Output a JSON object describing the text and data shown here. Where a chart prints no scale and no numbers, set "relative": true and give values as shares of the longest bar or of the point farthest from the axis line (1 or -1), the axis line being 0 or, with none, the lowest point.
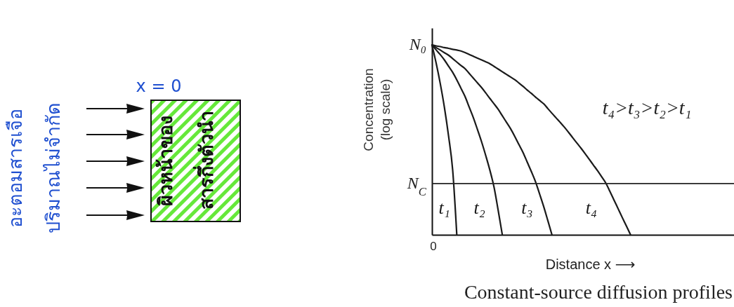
{
  "chart_data": {
    "type": "line",
    "relative": true,
    "xlabel": "Distance x ⟶",
    "ylabel": "Concentration\n(log scale)",
    "line_style": "solid",
    "categories": [
      null,
      null,
      null,
      null,
      null,
      null,
      null,
      null,
      null,
      null,
      null,
      null,
      null,
      null,
      null,
      null,
      null,
      null,
      null,
      null,
      null,
      null,
      null,
      null,
      null,
      null,
      null,
      null,
      null,
      null,
      null,
      null,
      null,
      null,
      null,
      null,
      null,
      null,
      null,
      null,
      null,
      null,
      null,
      null,
      null,
      null,
      null,
      null,
      null,
      null,
      null,
      null,
      null,
      null,
      null,
      null,
      null,
      null,
      null,
      null,
      null,
      null,
      null,
      null,
      null,
      null,
      null,
      null,
      null,
      null,
      null,
      null,
      null,
      null
    ],
    "series": [
      {
        "name": "t₁",
        "color": "#1a1a1a",
        "values": [
          1,
          0.905,
          0.797,
          0.672,
          0.522,
          0.342,
          0,
          null,
          null,
          null,
          null,
          null,
          null,
          null,
          null,
          null,
          null,
          null,
          null,
          null,
          null,
          null,
          null,
          null,
          null,
          null,
          null,
          null,
          null,
          null,
          null,
          null,
          null,
          null,
          null,
          null,
          null,
          null,
          null,
          null,
          null,
          null,
          null,
          null,
          null,
          null,
          null,
          null,
          null,
          null,
          null,
          null,
          null,
          null,
          null,
          null,
          null,
          null,
          null,
          null,
          null,
          null,
          null,
          null,
          null,
          null,
          null,
          null,
          null,
          null,
          null,
          null,
          null,
          null
        ]
      },
      {
        "name": "t₂",
        "color": "#1a1a1a",
        "values": [
          1,
          0.974,
          0.949,
          0.921,
          0.888,
          0.856,
          0.816,
          0.772,
          0.728,
          0.672,
          0.617,
          0.554,
          0.489,
          0.417,
          0.34,
          0.251,
          0.129,
          0,
          null,
          null,
          null,
          null,
          null,
          null,
          null,
          null,
          null,
          null,
          null,
          null,
          null,
          null,
          null,
          null,
          null,
          null,
          null,
          null,
          null,
          null,
          null,
          null,
          null,
          null,
          null,
          null,
          null,
          null,
          null,
          null,
          null,
          null,
          null,
          null,
          null,
          null,
          null,
          null,
          null,
          null,
          null,
          null,
          null,
          null,
          null,
          null,
          null,
          null,
          null,
          null,
          null,
          null,
          null,
          null
        ]
      },
      {
        "name": "t₃",
        "color": "#1a1a1a",
        "values": [
          1,
          0.986,
          0.973,
          0.959,
          0.946,
          0.928,
          0.91,
          0.892,
          0.875,
          0.85,
          0.825,
          0.8,
          0.775,
          0.747,
          0.718,
          0.69,
          0.661,
          0.627,
          0.593,
          0.559,
          0.519,
          0.476,
          0.434,
          0.384,
          0.334,
          0.281,
          0.216,
          0.149,
          0.075,
          0,
          null,
          null,
          null,
          null,
          null,
          null,
          null,
          null,
          null,
          null,
          null,
          null,
          null,
          null,
          null,
          null,
          null,
          null,
          null,
          null,
          null,
          null,
          null,
          null,
          null,
          null,
          null,
          null,
          null,
          null,
          null,
          null,
          null,
          null,
          null,
          null,
          null,
          null,
          null,
          null,
          null,
          null,
          null,
          null
        ]
      },
      {
        "name": "t₄",
        "color": "#1a1a1a",
        "values": [
          1,
          0.995,
          0.991,
          0.986,
          0.982,
          0.977,
          0.973,
          0.968,
          0.96,
          0.95,
          0.94,
          0.93,
          0.921,
          0.911,
          0.901,
          0.887,
          0.873,
          0.859,
          0.845,
          0.831,
          0.817,
          0.8,
          0.782,
          0.763,
          0.745,
          0.726,
          0.708,
          0.69,
          0.665,
          0.64,
          0.616,
          0.592,
          0.567,
          0.54,
          0.512,
          0.484,
          0.457,
          0.428,
          0.398,
          0.368,
          0.338,
          0.306,
          0.273,
          0.229,
          0.183,
          0.137,
          0.091,
          0.046,
          0,
          null,
          null,
          null,
          null,
          null,
          null,
          null,
          null,
          null,
          null,
          null,
          null,
          null,
          null,
          null,
          null,
          null,
          null,
          null,
          null,
          null,
          null,
          null,
          null,
          null
        ]
      }
    ],
    "ref_lines": [
      {
        "axis": "y",
        "value": 0.27,
        "label": "N$_{C}$"
      }
    ],
    "annotations": [
      "N₀",
      "0",
      "t₄>t₃>t₂>t₁",
      "Constant-source diffusion profiles",
      "อะตอมสารเจือ",
      "ปริมาณไม่จำกัด",
      "x = 0",
      "ผิวหน้าของ",
      "สารกึ่งตัวนำ"
    ]
  }
}
